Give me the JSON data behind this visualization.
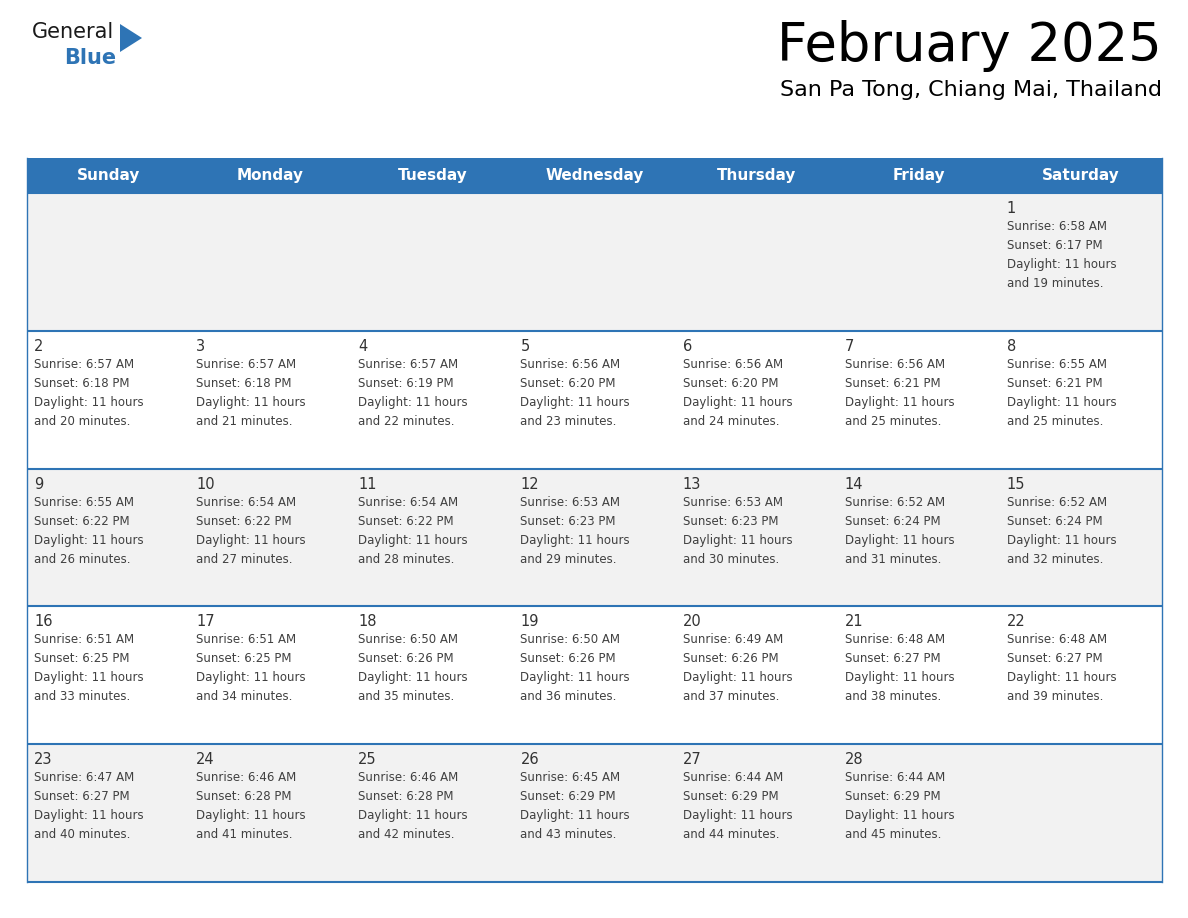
{
  "title": "February 2025",
  "subtitle": "San Pa Tong, Chiang Mai, Thailand",
  "header_bg": "#2e74b5",
  "header_text_color": "#ffffff",
  "day_names": [
    "Sunday",
    "Monday",
    "Tuesday",
    "Wednesday",
    "Thursday",
    "Friday",
    "Saturday"
  ],
  "odd_row_bg": "#f2f2f2",
  "even_row_bg": "#ffffff",
  "cell_border_color": "#2e74b5",
  "day_num_color": "#333333",
  "day_text_color": "#404040",
  "title_color": "#000000",
  "subtitle_color": "#000000",
  "calendar_data": [
    [
      null,
      null,
      null,
      null,
      null,
      null,
      {
        "day": 1,
        "sunrise": "6:58 AM",
        "sunset": "6:17 PM",
        "daylight": "11 hours and 19 minutes."
      }
    ],
    [
      {
        "day": 2,
        "sunrise": "6:57 AM",
        "sunset": "6:18 PM",
        "daylight": "11 hours and 20 minutes."
      },
      {
        "day": 3,
        "sunrise": "6:57 AM",
        "sunset": "6:18 PM",
        "daylight": "11 hours and 21 minutes."
      },
      {
        "day": 4,
        "sunrise": "6:57 AM",
        "sunset": "6:19 PM",
        "daylight": "11 hours and 22 minutes."
      },
      {
        "day": 5,
        "sunrise": "6:56 AM",
        "sunset": "6:20 PM",
        "daylight": "11 hours and 23 minutes."
      },
      {
        "day": 6,
        "sunrise": "6:56 AM",
        "sunset": "6:20 PM",
        "daylight": "11 hours and 24 minutes."
      },
      {
        "day": 7,
        "sunrise": "6:56 AM",
        "sunset": "6:21 PM",
        "daylight": "11 hours and 25 minutes."
      },
      {
        "day": 8,
        "sunrise": "6:55 AM",
        "sunset": "6:21 PM",
        "daylight": "11 hours and 25 minutes."
      }
    ],
    [
      {
        "day": 9,
        "sunrise": "6:55 AM",
        "sunset": "6:22 PM",
        "daylight": "11 hours and 26 minutes."
      },
      {
        "day": 10,
        "sunrise": "6:54 AM",
        "sunset": "6:22 PM",
        "daylight": "11 hours and 27 minutes."
      },
      {
        "day": 11,
        "sunrise": "6:54 AM",
        "sunset": "6:22 PM",
        "daylight": "11 hours and 28 minutes."
      },
      {
        "day": 12,
        "sunrise": "6:53 AM",
        "sunset": "6:23 PM",
        "daylight": "11 hours and 29 minutes."
      },
      {
        "day": 13,
        "sunrise": "6:53 AM",
        "sunset": "6:23 PM",
        "daylight": "11 hours and 30 minutes."
      },
      {
        "day": 14,
        "sunrise": "6:52 AM",
        "sunset": "6:24 PM",
        "daylight": "11 hours and 31 minutes."
      },
      {
        "day": 15,
        "sunrise": "6:52 AM",
        "sunset": "6:24 PM",
        "daylight": "11 hours and 32 minutes."
      }
    ],
    [
      {
        "day": 16,
        "sunrise": "6:51 AM",
        "sunset": "6:25 PM",
        "daylight": "11 hours and 33 minutes."
      },
      {
        "day": 17,
        "sunrise": "6:51 AM",
        "sunset": "6:25 PM",
        "daylight": "11 hours and 34 minutes."
      },
      {
        "day": 18,
        "sunrise": "6:50 AM",
        "sunset": "6:26 PM",
        "daylight": "11 hours and 35 minutes."
      },
      {
        "day": 19,
        "sunrise": "6:50 AM",
        "sunset": "6:26 PM",
        "daylight": "11 hours and 36 minutes."
      },
      {
        "day": 20,
        "sunrise": "6:49 AM",
        "sunset": "6:26 PM",
        "daylight": "11 hours and 37 minutes."
      },
      {
        "day": 21,
        "sunrise": "6:48 AM",
        "sunset": "6:27 PM",
        "daylight": "11 hours and 38 minutes."
      },
      {
        "day": 22,
        "sunrise": "6:48 AM",
        "sunset": "6:27 PM",
        "daylight": "11 hours and 39 minutes."
      }
    ],
    [
      {
        "day": 23,
        "sunrise": "6:47 AM",
        "sunset": "6:27 PM",
        "daylight": "11 hours and 40 minutes."
      },
      {
        "day": 24,
        "sunrise": "6:46 AM",
        "sunset": "6:28 PM",
        "daylight": "11 hours and 41 minutes."
      },
      {
        "day": 25,
        "sunrise": "6:46 AM",
        "sunset": "6:28 PM",
        "daylight": "11 hours and 42 minutes."
      },
      {
        "day": 26,
        "sunrise": "6:45 AM",
        "sunset": "6:29 PM",
        "daylight": "11 hours and 43 minutes."
      },
      {
        "day": 27,
        "sunrise": "6:44 AM",
        "sunset": "6:29 PM",
        "daylight": "11 hours and 44 minutes."
      },
      {
        "day": 28,
        "sunrise": "6:44 AM",
        "sunset": "6:29 PM",
        "daylight": "11 hours and 45 minutes."
      },
      null
    ]
  ],
  "logo_text_general": "General",
  "logo_text_blue": "Blue",
  "fig_width": 11.88,
  "fig_height": 9.18,
  "dpi": 100
}
